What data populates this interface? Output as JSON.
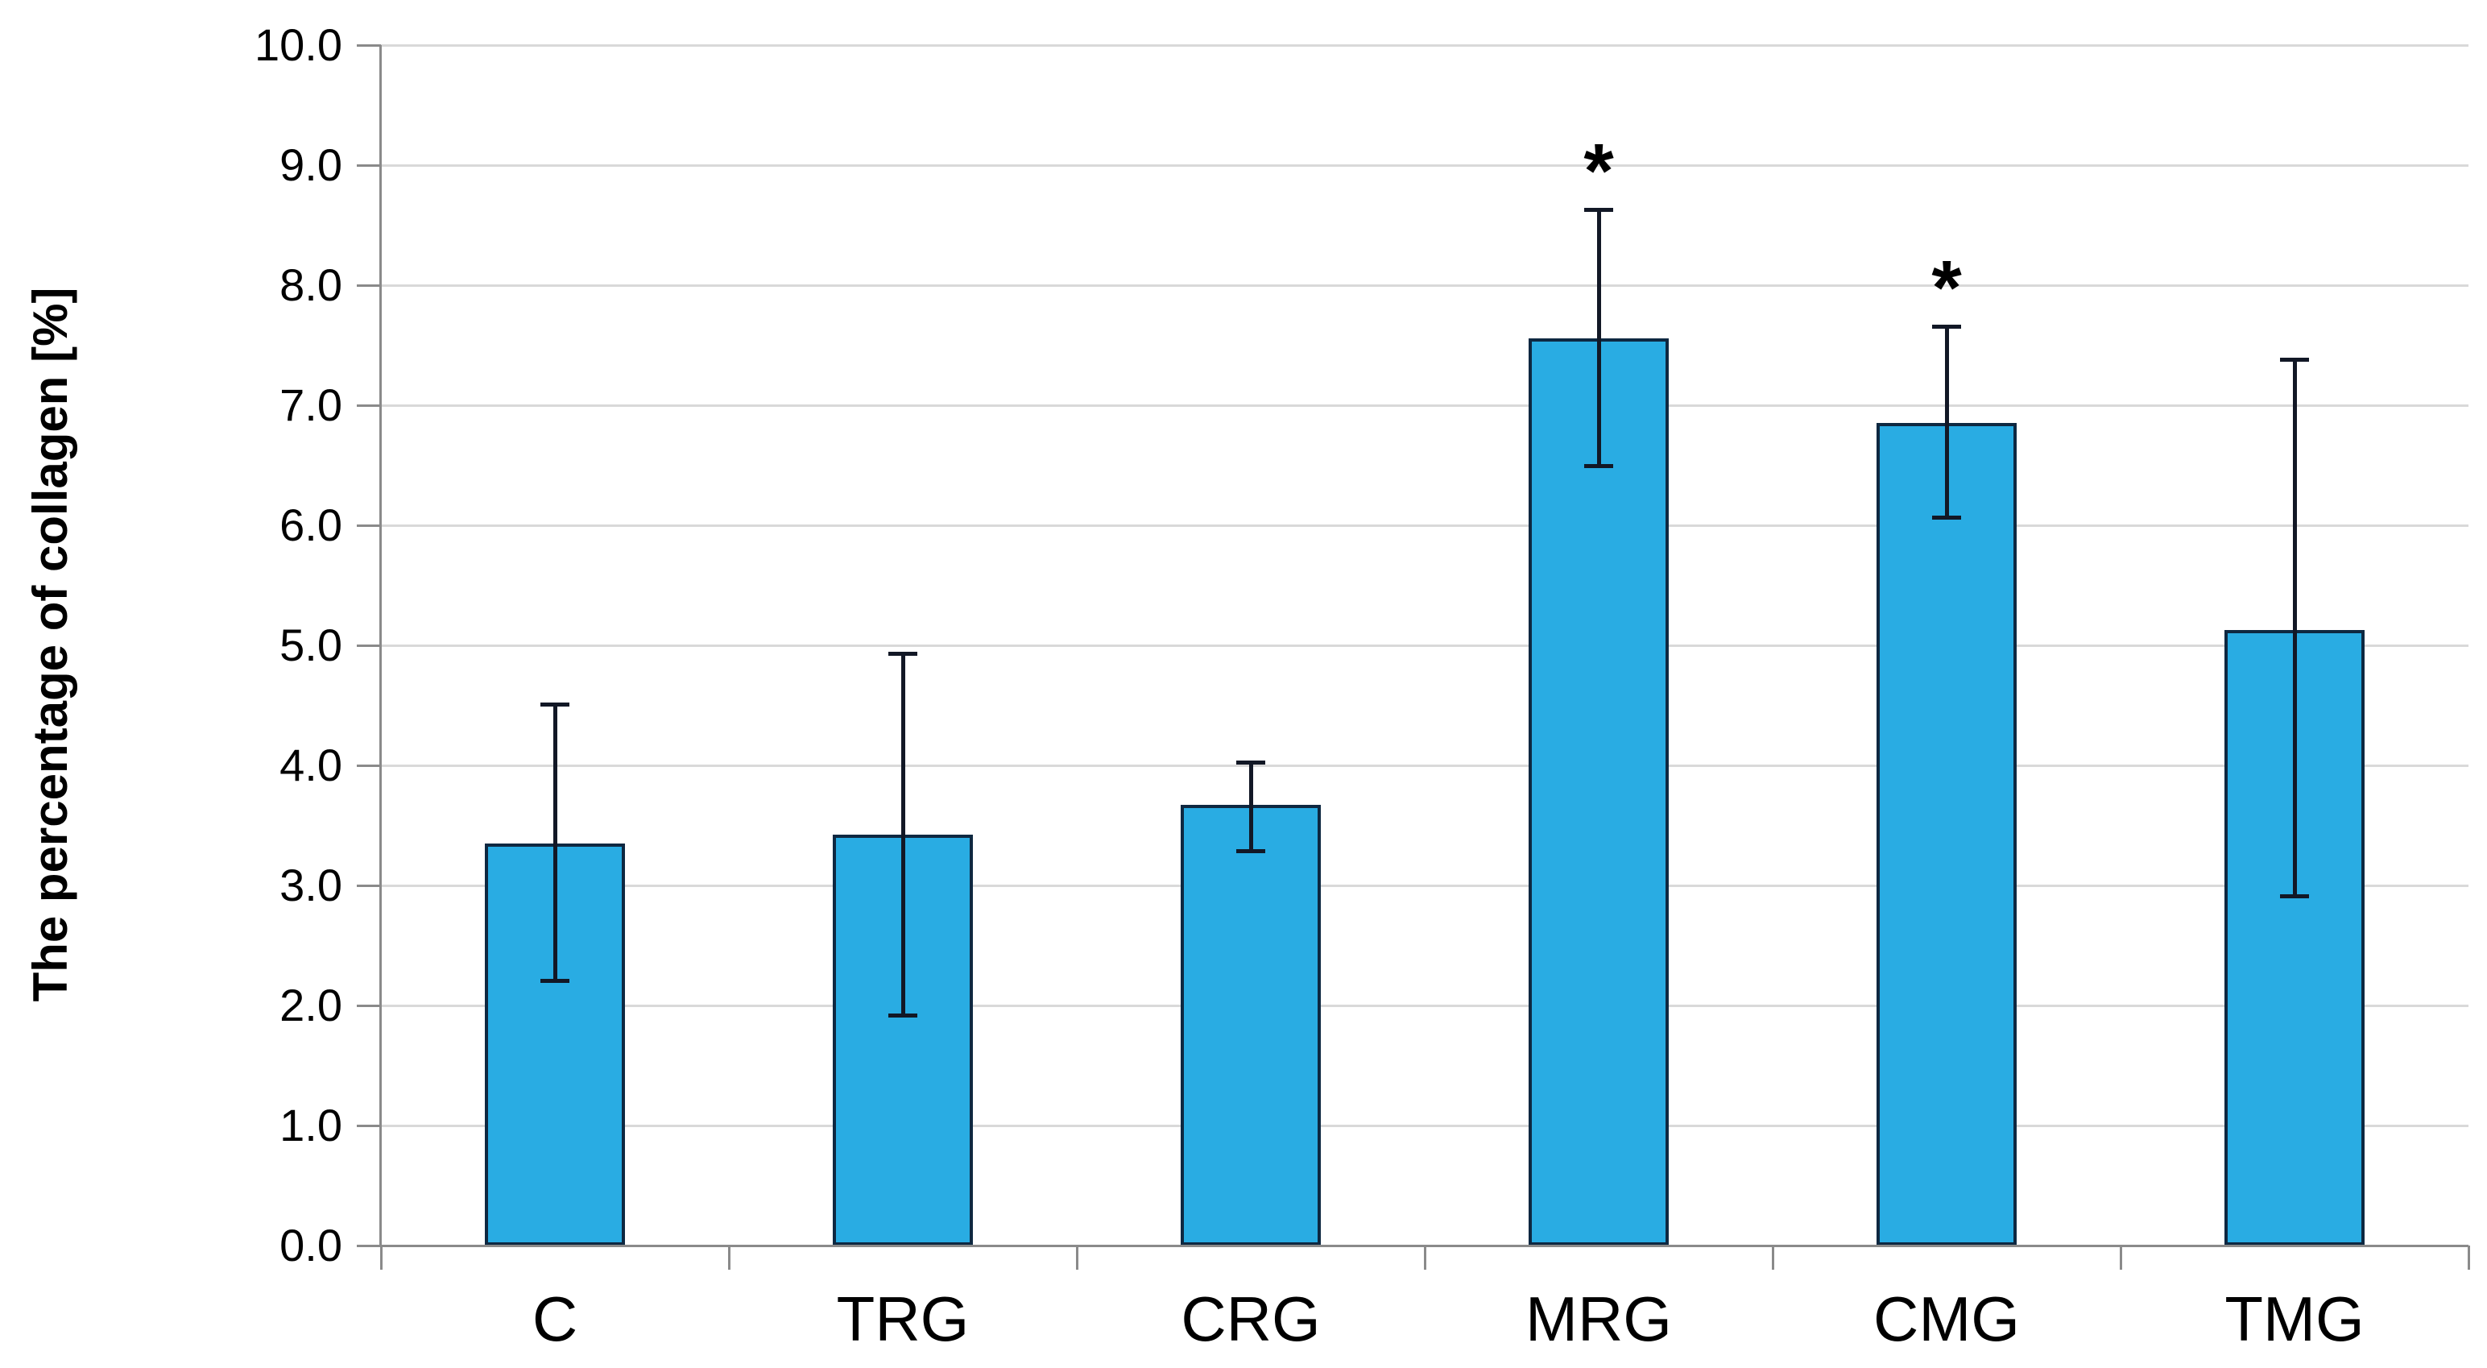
{
  "chart_data": {
    "type": "bar",
    "title": "",
    "xlabel": "",
    "ylabel": "The percentage of collagen [%]",
    "categories": [
      "C",
      "TRG",
      "CRG",
      "MRG",
      "CMG",
      "TMG"
    ],
    "values": [
      3.35,
      3.42,
      3.67,
      7.56,
      6.85,
      5.13
    ],
    "error_up": [
      1.16,
      1.51,
      0.36,
      1.07,
      0.81,
      2.25
    ],
    "error_down": [
      1.14,
      1.5,
      0.38,
      1.06,
      0.78,
      2.22
    ],
    "significance": [
      "",
      "",
      "",
      "*",
      "*",
      ""
    ],
    "ylim": [
      0,
      10
    ],
    "ytick_step": 1.0,
    "ytick_labels": [
      "0.0",
      "1.0",
      "2.0",
      "3.0",
      "4.0",
      "5.0",
      "6.0",
      "7.0",
      "8.0",
      "9.0",
      "10.0"
    ],
    "grid": "horizontal-only",
    "legend": "none",
    "colors": {
      "bar_fill": "#29ACE3",
      "bar_border": "#0E2841",
      "error_bar": "#121826",
      "gridline": "#D9D9D9",
      "axis": "#8A8A8A",
      "text": "#000000",
      "background": "#FFFFFF"
    }
  }
}
